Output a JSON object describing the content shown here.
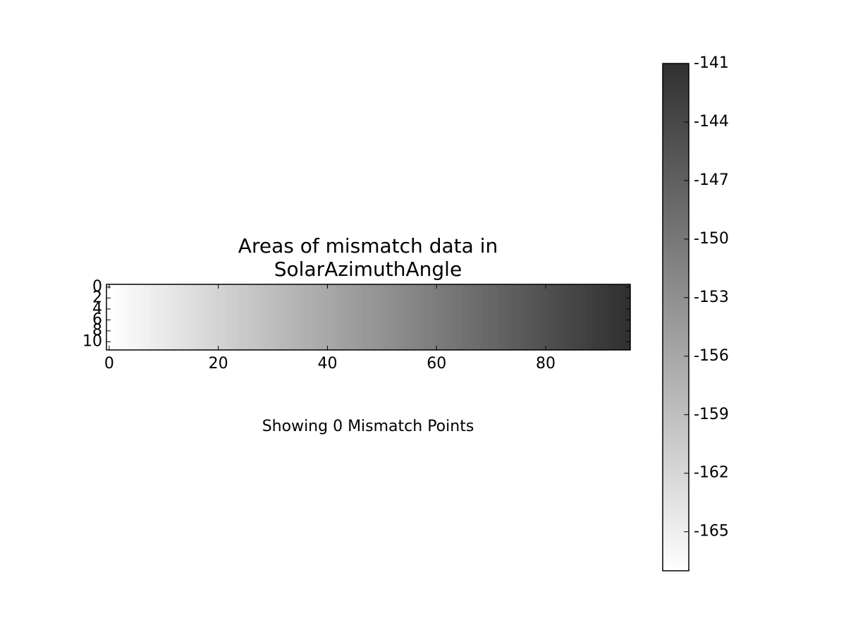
{
  "chart_data": {
    "type": "heatmap",
    "title": "Areas of mismatch data in\nSolarAzimuthAngle",
    "annotation": "Showing 0 Mismatch Points",
    "values": [
      -167.0,
      -166.7,
      -166.5,
      -166.2,
      -165.9,
      -165.6,
      -165.4,
      -165.1,
      -164.8,
      -164.5,
      -164.3,
      -164.0,
      -163.7,
      -163.4,
      -163.2,
      -162.9,
      -162.6,
      -162.3,
      -162.1,
      -161.8,
      -161.5,
      -161.3,
      -161.0,
      -160.7,
      -160.4,
      -160.2,
      -159.9,
      -159.6,
      -159.3,
      -159.1,
      -158.8,
      -158.5,
      -158.2,
      -158.0,
      -157.7,
      -157.4,
      -157.1,
      -156.9,
      -156.6,
      -156.3,
      -156.1,
      -155.8,
      -155.5,
      -155.2,
      -155.0,
      -154.7,
      -154.4,
      -154.1,
      -153.9,
      -153.6,
      -153.3,
      -153.0,
      -152.8,
      -152.5,
      -152.2,
      -151.9,
      -151.7,
      -151.4,
      -151.1,
      -150.9,
      -150.6,
      -150.3,
      -150.0,
      -149.8,
      -149.5,
      -149.2,
      -148.9,
      -148.7,
      -148.4,
      -148.1,
      -147.8,
      -147.6,
      -147.3,
      -147.0,
      -146.7,
      -146.5,
      -146.2,
      -145.9,
      -145.6,
      -145.4,
      -145.1,
      -144.8,
      -144.5,
      -144.3,
      -144.0,
      -143.7,
      -143.5,
      -143.2,
      -142.9,
      -142.6,
      -142.4,
      -142.1,
      -141.8,
      -141.5,
      -141.3,
      -141.0
    ],
    "xlim": [
      -0.5,
      95.5
    ],
    "xticks": [
      0,
      20,
      40,
      60,
      80
    ],
    "ylim": [
      11.5,
      -0.5
    ],
    "yticks": [
      0,
      2,
      4,
      6,
      8,
      10
    ],
    "clim": [
      -167,
      -141
    ],
    "colorbar_ticks": [
      -141,
      -144,
      -147,
      -150,
      -153,
      -156,
      -159,
      -162,
      -165
    ],
    "cmap_colors": [
      "#ffffff",
      "#303030"
    ]
  }
}
